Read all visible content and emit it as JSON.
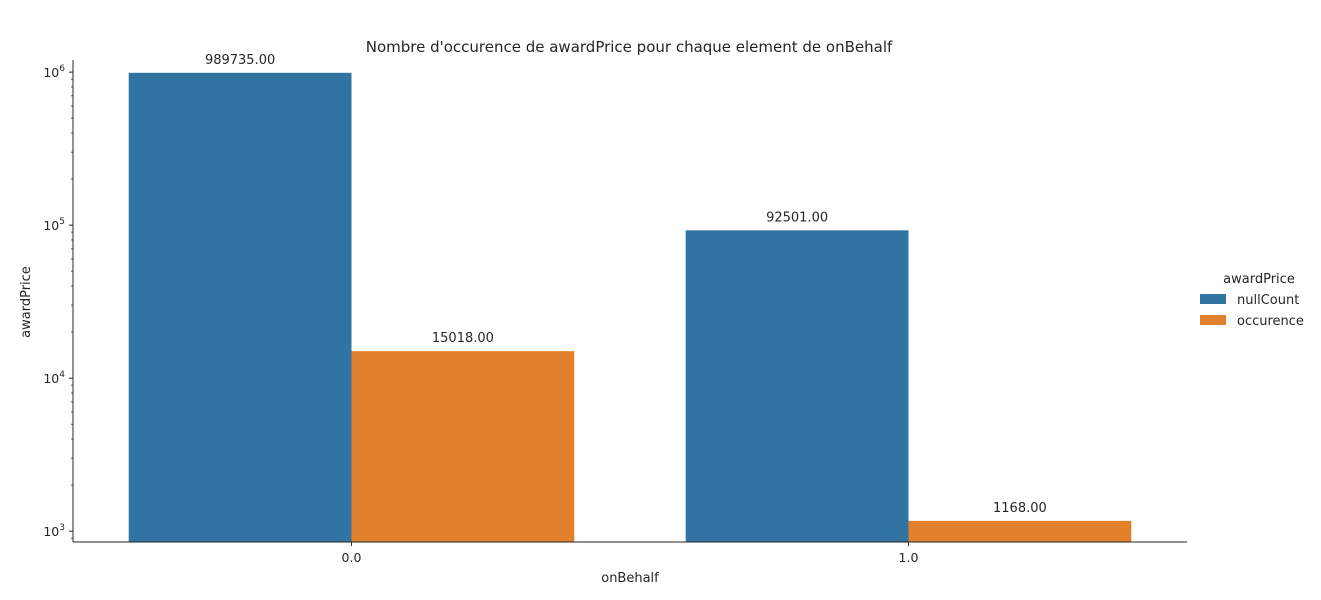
{
  "chart_data": {
    "type": "bar",
    "title": "Nombre d'occurence de awardPrice pour chaque element de onBehalf",
    "xlabel": "onBehalf",
    "ylabel": "awardPrice",
    "yscale": "log",
    "ylim": [
      850,
      1200000
    ],
    "yticks": [
      {
        "value": 1000,
        "base": "10",
        "exp": "3"
      },
      {
        "value": 10000,
        "base": "10",
        "exp": "4"
      },
      {
        "value": 100000,
        "base": "10",
        "exp": "5"
      },
      {
        "value": 1000000,
        "base": "10",
        "exp": "6"
      }
    ],
    "categories": [
      "0.0",
      "1.0"
    ],
    "series": [
      {
        "name": "nullCount",
        "color": "#3274a1",
        "values": [
          989735.0,
          92501.0
        ],
        "labels": [
          "989735.00",
          "92501.00"
        ]
      },
      {
        "name": "occurence",
        "color": "#e1812c",
        "values": [
          15018.0,
          1168.0
        ],
        "labels": [
          "15018.00",
          "1168.00"
        ]
      }
    ],
    "legend": {
      "title": "awardPrice",
      "position": "right"
    },
    "grid": false
  }
}
